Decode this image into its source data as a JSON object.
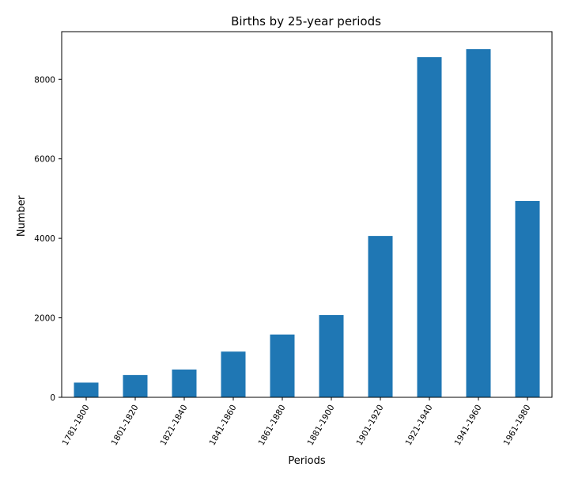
{
  "chart_data": {
    "type": "bar",
    "title": "Births by 25-year periods",
    "xlabel": "Periods",
    "ylabel": "Number",
    "categories": [
      "1781-1800",
      "1801-1820",
      "1821-1840",
      "1841-1860",
      "1861-1880",
      "1881-1900",
      "1901-1920",
      "1921-1940",
      "1941-1960",
      "1961-1980"
    ],
    "values": [
      370,
      560,
      700,
      1150,
      1580,
      2070,
      4060,
      8560,
      8760,
      4940
    ],
    "ylim": [
      0,
      9200
    ],
    "yticks": [
      0,
      2000,
      4000,
      6000,
      8000
    ],
    "ytick_labels": [
      "0",
      "2000",
      "4000",
      "6000",
      "8000"
    ],
    "bar_color": "#1f77b4",
    "grid": false,
    "legend": "none"
  }
}
